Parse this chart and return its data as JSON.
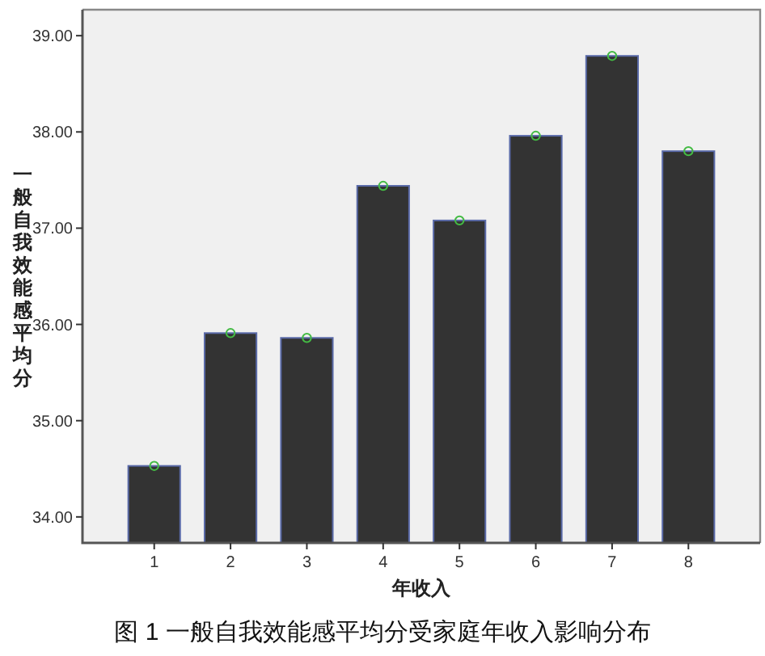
{
  "chart_data": {
    "type": "bar",
    "title": "图 1 一般自我效能感平均分受家庭年收入影响分布",
    "xlabel": "年收入",
    "ylabel": "一般自我效能感平均分",
    "categories": [
      "1",
      "2",
      "3",
      "4",
      "5",
      "6",
      "7",
      "8"
    ],
    "series": [
      {
        "color": "#333333",
        "values": [
          34.53,
          35.91,
          35.86,
          37.44,
          37.08,
          37.96,
          38.79,
          37.8
        ]
      },
      {
        "type": "scatter",
        "color": "#44bb44",
        "marker": "circle",
        "x": [
          "1",
          "2",
          "3",
          "4",
          "5",
          "6",
          "7",
          "8"
        ],
        "values": [
          34.53,
          35.91,
          35.86,
          37.44,
          37.08,
          37.96,
          38.79,
          37.8
        ]
      }
    ],
    "ylim": [
      33.73,
      39.27
    ],
    "yticks": [
      {
        "value": 34,
        "label": "34.00"
      },
      {
        "value": 35,
        "label": "35.00"
      },
      {
        "value": 36,
        "label": "36.00"
      },
      {
        "value": 37,
        "label": "37.00"
      },
      {
        "value": 38,
        "label": "38.00"
      },
      {
        "value": 39,
        "label": "39.00"
      }
    ],
    "grid": false
  }
}
